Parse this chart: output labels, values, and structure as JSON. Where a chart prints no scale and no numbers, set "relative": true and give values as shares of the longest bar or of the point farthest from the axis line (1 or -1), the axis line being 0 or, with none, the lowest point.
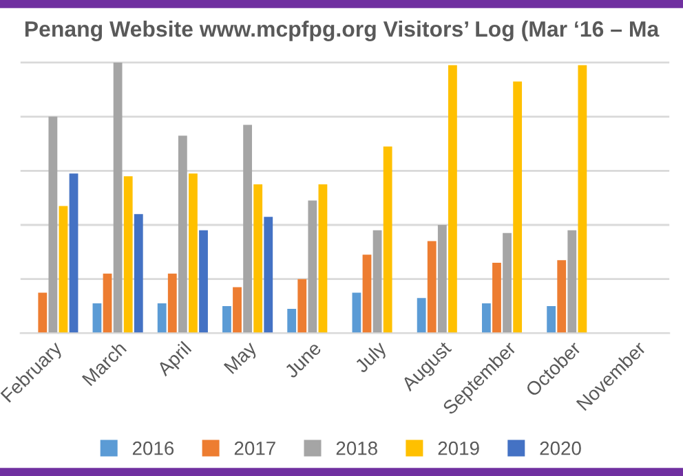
{
  "chart_data": {
    "type": "bar",
    "title": "Penang Website www.mcpfpg.org Visitors’ Log (Mar ‘16 – Ma",
    "relative": true,
    "grid": "y",
    "legend": "bottom",
    "categories": [
      "February",
      "March",
      "April",
      "May",
      "June",
      "July",
      "August",
      "September",
      "October",
      "November"
    ],
    "series": [
      {
        "name": "2016",
        "color": "#5b9bd5",
        "values": [
          null,
          0.11,
          0.11,
          0.1,
          0.09,
          0.15,
          0.13,
          0.11,
          0.1,
          null
        ]
      },
      {
        "name": "2017",
        "color": "#ed7d31",
        "values": [
          0.15,
          0.22,
          0.22,
          0.17,
          0.2,
          0.29,
          0.34,
          0.26,
          0.27,
          null
        ]
      },
      {
        "name": "2018",
        "color": "#a5a5a5",
        "values": [
          0.8,
          1,
          0.73,
          0.77,
          0.49,
          0.38,
          0.4,
          0.37,
          0.38,
          null
        ]
      },
      {
        "name": "2019",
        "color": "#ffc000",
        "values": [
          0.47,
          0.58,
          0.59,
          0.55,
          0.55,
          0.69,
          0.99,
          0.93,
          0.99,
          null
        ]
      },
      {
        "name": "2020",
        "color": "#4472c4",
        "values": [
          0.59,
          0.44,
          0.38,
          0.43,
          null,
          null,
          null,
          null,
          null,
          null
        ]
      }
    ]
  }
}
